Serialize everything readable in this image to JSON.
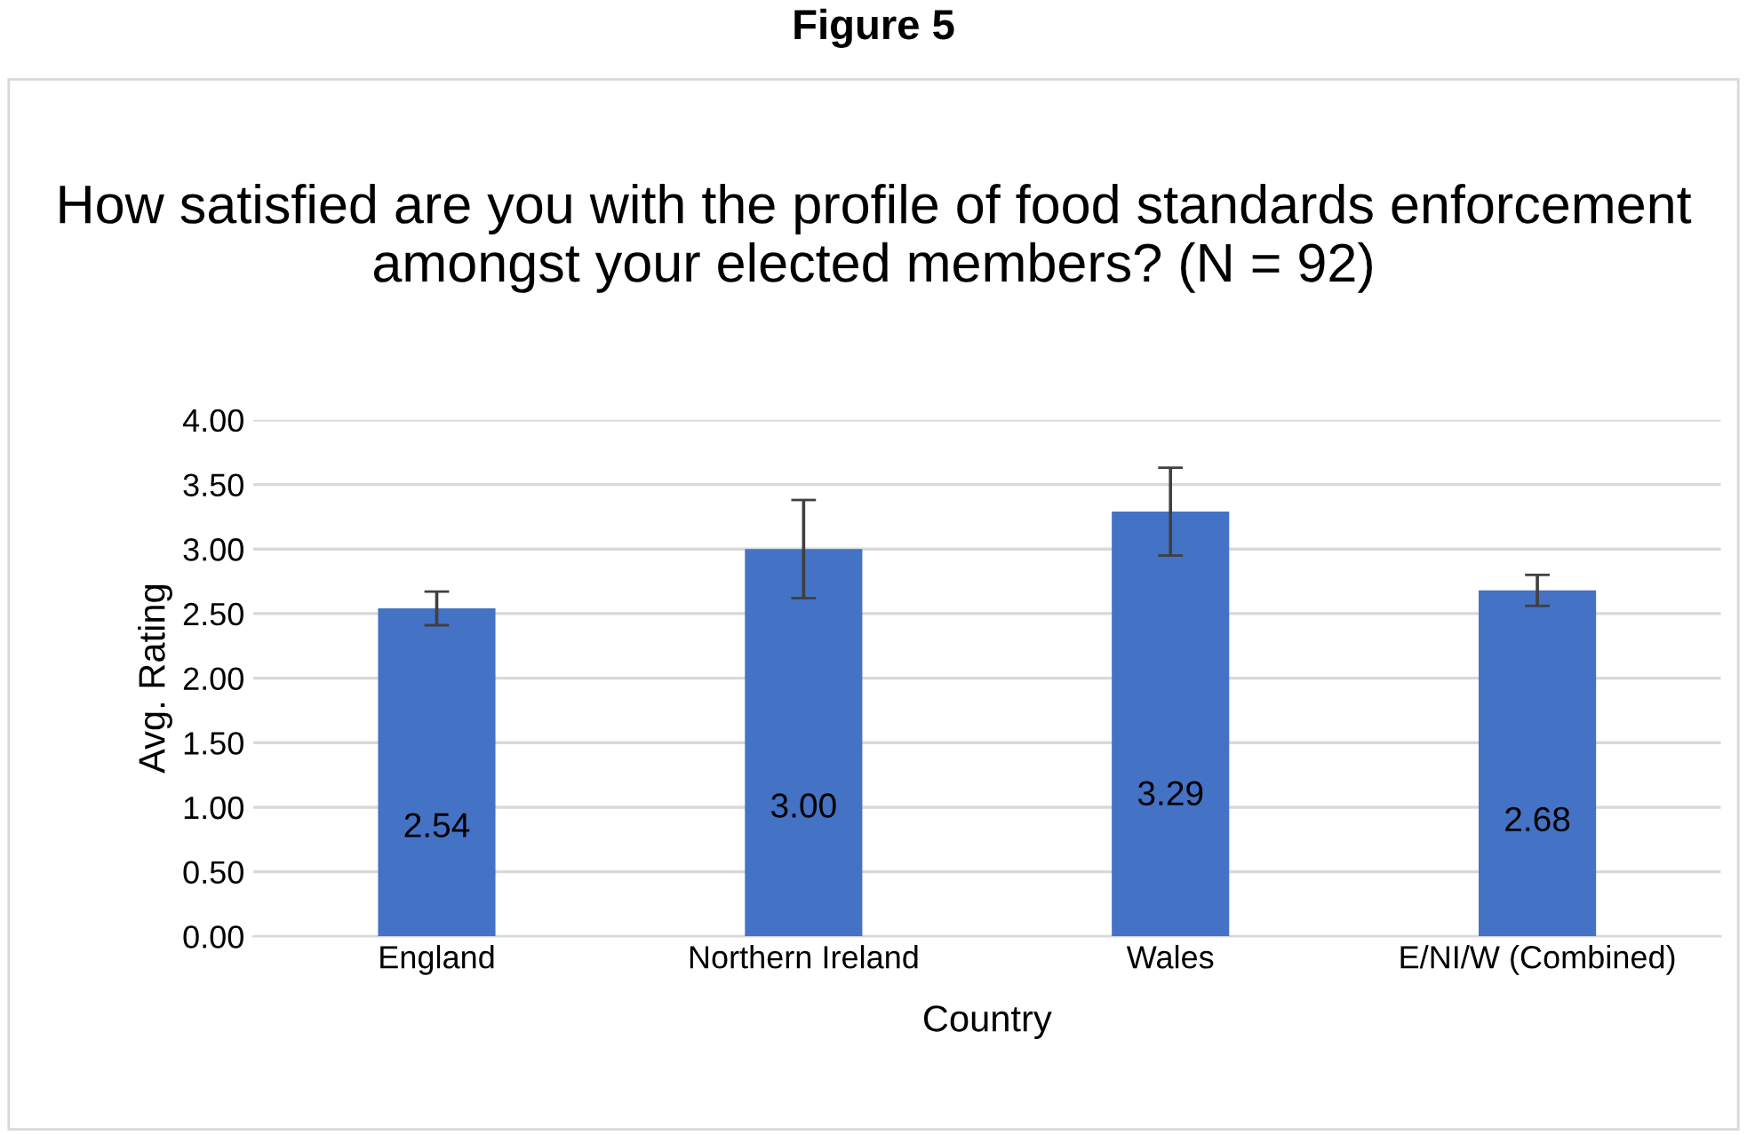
{
  "chart_data": {
    "type": "bar",
    "title": "How satisfied are you with the profile of food standards enforcement amongst your elected members? (N = 92)",
    "annotations": [
      "Figure 5"
    ],
    "xlabel": "Country",
    "ylabel": "Avg. Rating",
    "categories": [
      "England",
      "Northern Ireland",
      "Wales",
      "E/NI/W (Combined)"
    ],
    "values": [
      2.54,
      3.0,
      3.29,
      2.68
    ],
    "errors": [
      0.13,
      0.38,
      0.34,
      0.12
    ],
    "color": "#4472c4",
    "value_labels": [
      "2.54",
      "3.00",
      "3.29",
      "2.68"
    ],
    "ylim": [
      0,
      4
    ],
    "yticks": [
      {
        "value": 0,
        "label": "0.00"
      },
      {
        "value": 0.5,
        "label": "0.50"
      },
      {
        "value": 1,
        "label": "1.00"
      },
      {
        "value": 1.5,
        "label": "1.50"
      },
      {
        "value": 2,
        "label": "2.00"
      },
      {
        "value": 2.5,
        "label": "2.50"
      },
      {
        "value": 3,
        "label": "3.00"
      },
      {
        "value": 3.5,
        "label": "3.50"
      },
      {
        "value": 4,
        "label": "4.00"
      }
    ],
    "grid": "y"
  }
}
